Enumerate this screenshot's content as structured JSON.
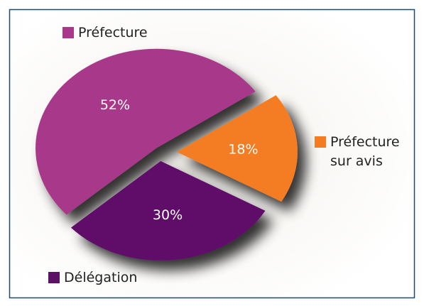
{
  "chart_data": {
    "type": "pie",
    "categories": [
      "Préfecture",
      "Préfecture sur avis",
      "Délégation"
    ],
    "values": [
      52,
      18,
      30
    ],
    "value_labels": [
      "52%",
      "18%",
      "30%"
    ],
    "colors": [
      "#a8388a",
      "#f47b20",
      "#5e1068"
    ],
    "legend": true
  }
}
